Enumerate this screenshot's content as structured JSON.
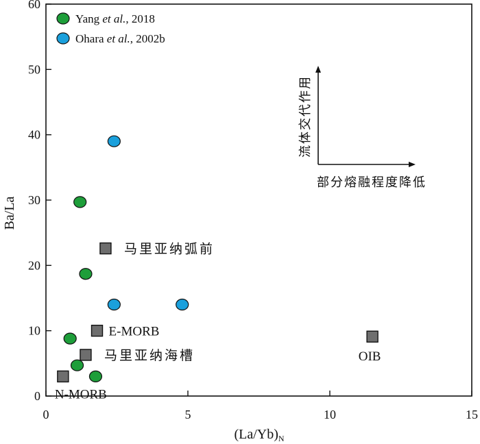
{
  "chart_data": {
    "type": "scatter",
    "xlabel": "(La/Yb)",
    "xlabel_sub": "N",
    "ylabel": "Ba/La",
    "xlim": [
      0,
      15
    ],
    "ylim": [
      0,
      60
    ],
    "x_ticks": [
      0,
      5,
      10,
      15
    ],
    "y_ticks": [
      0,
      10,
      20,
      30,
      40,
      50,
      60
    ],
    "grid": false,
    "legend_position": "top-left",
    "series": [
      {
        "name_prefix": "Yang ",
        "name_italic": "et al.",
        "name_suffix": ", 2018",
        "color": "#1e9e3a",
        "marker": "circle",
        "x": [
          1.2,
          1.4,
          0.85,
          1.1,
          1.75
        ],
        "y": [
          29.7,
          18.7,
          8.8,
          4.7,
          3.0
        ]
      },
      {
        "name_prefix": "Ohara ",
        "name_italic": "et al.",
        "name_suffix": ", 2002b",
        "color": "#1aa0dc",
        "marker": "circle",
        "x": [
          2.4,
          2.4,
          4.8
        ],
        "y": [
          39.0,
          14.0,
          14.0
        ]
      }
    ],
    "reference_points": {
      "color": "#6e6e6e",
      "marker": "square",
      "points": [
        {
          "label": "马里亚纳弧前",
          "x": 2.1,
          "y": 22.6,
          "label_pos": "right"
        },
        {
          "label": "E-MORB",
          "x": 1.8,
          "y": 10.0,
          "label_pos": "right"
        },
        {
          "label": "马里亚纳海槽",
          "x": 1.4,
          "y": 6.3,
          "label_pos": "right"
        },
        {
          "label": "N-MORB",
          "x": 0.6,
          "y": 3.0,
          "label_pos": "below-right"
        },
        {
          "label": "OIB",
          "x": 11.5,
          "y": 9.1,
          "label_pos": "below"
        }
      ]
    },
    "annotations": {
      "vertical_arrow_label": "流体交代作用",
      "horizontal_arrow_label": "部分熔融程度降低"
    }
  }
}
